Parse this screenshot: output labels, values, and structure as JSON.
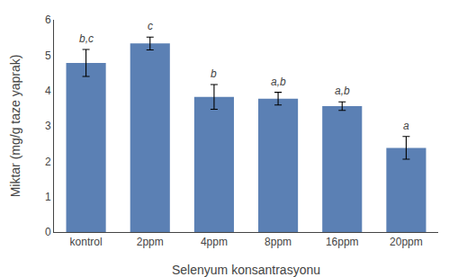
{
  "chart_data": {
    "type": "bar",
    "xlabel": "Selenyum konsantrasyonu",
    "ylabel": "Miktar (mg/g taze yaprak)",
    "categories": [
      "kontrol",
      "2ppm",
      "4ppm",
      "8ppm",
      "16ppm",
      "20ppm"
    ],
    "values": [
      4.78,
      5.33,
      3.82,
      3.77,
      3.56,
      2.38
    ],
    "errors": [
      0.38,
      0.18,
      0.35,
      0.18,
      0.12,
      0.32
    ],
    "annotations": [
      "b,c",
      "c",
      "b",
      "a,b",
      "a,b",
      "a"
    ],
    "color": "#5b80b4",
    "ylim": [
      0,
      6
    ],
    "yticks": [
      0,
      1,
      2,
      3,
      4,
      5,
      6
    ],
    "grid": false
  }
}
